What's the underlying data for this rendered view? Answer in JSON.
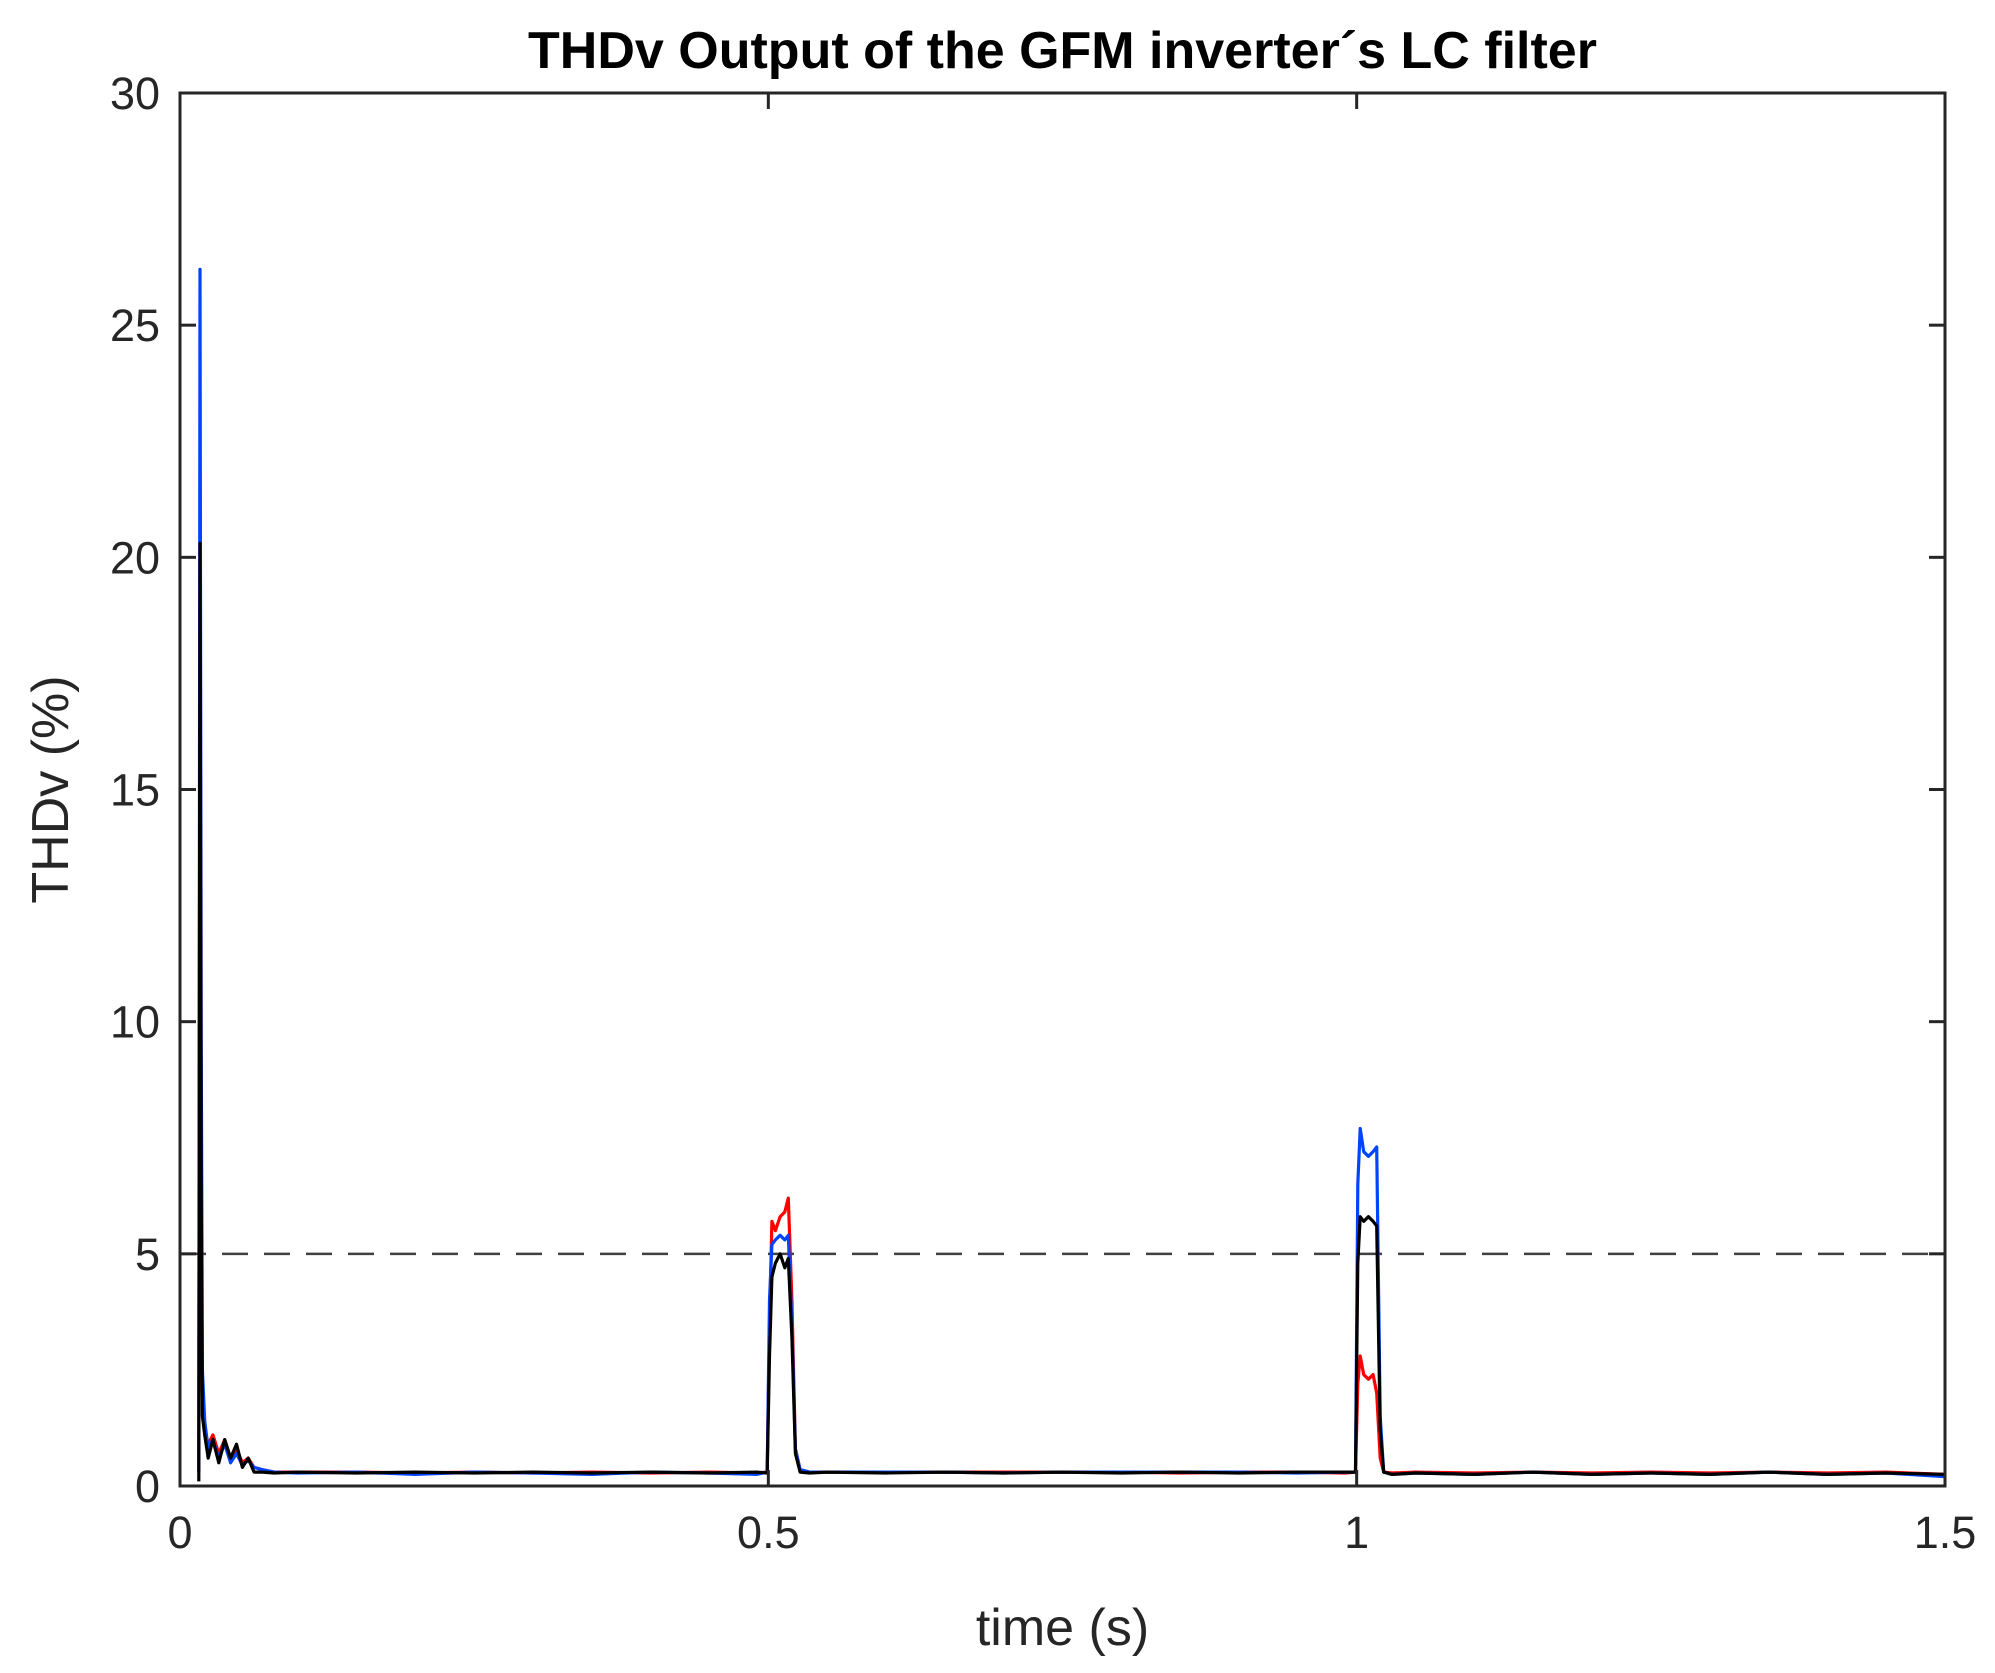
{
  "chart_data": {
    "type": "line",
    "title": "THDv Output of the GFM inverter´s LC filter",
    "xlabel": "time (s)",
    "ylabel": "THDv (%)",
    "xlim": [
      0,
      1.5
    ],
    "ylim": [
      0,
      30
    ],
    "xticks": [
      0,
      0.5,
      1,
      1.5
    ],
    "xtick_labels": [
      "0",
      "0.5",
      "1",
      "1.5"
    ],
    "yticks": [
      0,
      5,
      10,
      15,
      20,
      25,
      30
    ],
    "ytick_labels": [
      "0",
      "5",
      "10",
      "15",
      "20",
      "25",
      "30"
    ],
    "grid": false,
    "reference_lines": [
      {
        "y": 5,
        "style": "dashed",
        "color": "#404040"
      }
    ],
    "series": [
      {
        "color": "#ff0000",
        "x": [
          0.0,
          0.016,
          0.017,
          0.018,
          0.019,
          0.021,
          0.024,
          0.028,
          0.033,
          0.038,
          0.043,
          0.048,
          0.053,
          0.058,
          0.063,
          0.07,
          0.08,
          0.1,
          0.15,
          0.2,
          0.25,
          0.3,
          0.35,
          0.4,
          0.45,
          0.49,
          0.499,
          0.501,
          0.503,
          0.506,
          0.51,
          0.514,
          0.517,
          0.52,
          0.523,
          0.527,
          0.535,
          0.55,
          0.6,
          0.65,
          0.7,
          0.75,
          0.8,
          0.85,
          0.9,
          0.95,
          0.99,
          0.999,
          1.001,
          1.003,
          1.006,
          1.01,
          1.014,
          1.017,
          1.02,
          1.023,
          1.03,
          1.05,
          1.1,
          1.15,
          1.2,
          1.25,
          1.3,
          1.35,
          1.4,
          1.45,
          1.5
        ],
        "values": [
          null,
          0.3,
          19.5,
          5.0,
          2.0,
          1.2,
          0.9,
          1.1,
          0.7,
          1.0,
          0.6,
          0.8,
          0.5,
          0.6,
          0.4,
          0.35,
          0.3,
          0.3,
          0.3,
          0.28,
          0.3,
          0.28,
          0.3,
          0.28,
          0.3,
          0.28,
          0.3,
          3.5,
          5.7,
          5.5,
          5.8,
          5.9,
          6.2,
          4.0,
          0.8,
          0.35,
          0.3,
          0.3,
          0.3,
          0.3,
          0.3,
          0.3,
          0.3,
          0.28,
          0.3,
          0.3,
          0.28,
          0.3,
          2.2,
          2.8,
          2.4,
          2.3,
          2.4,
          2.0,
          0.6,
          0.3,
          0.28,
          0.3,
          0.28,
          0.3,
          0.28,
          0.3,
          0.28,
          0.3,
          0.28,
          0.3,
          0.25
        ]
      },
      {
        "color": "#0044ff",
        "x": [
          0.0,
          0.016,
          0.017,
          0.018,
          0.019,
          0.021,
          0.024,
          0.028,
          0.033,
          0.038,
          0.043,
          0.048,
          0.053,
          0.058,
          0.063,
          0.07,
          0.08,
          0.1,
          0.15,
          0.2,
          0.25,
          0.3,
          0.35,
          0.4,
          0.45,
          0.49,
          0.499,
          0.501,
          0.503,
          0.506,
          0.51,
          0.514,
          0.517,
          0.52,
          0.523,
          0.527,
          0.535,
          0.55,
          0.6,
          0.65,
          0.7,
          0.75,
          0.8,
          0.85,
          0.9,
          0.95,
          0.99,
          0.999,
          1.001,
          1.003,
          1.006,
          1.01,
          1.014,
          1.017,
          1.02,
          1.023,
          1.03,
          1.05,
          1.1,
          1.15,
          1.2,
          1.25,
          1.3,
          1.35,
          1.4,
          1.45,
          1.5
        ],
        "values": [
          null,
          0.3,
          26.2,
          9.8,
          2.5,
          1.4,
          0.8,
          1.0,
          0.6,
          0.9,
          0.5,
          0.7,
          0.45,
          0.55,
          0.4,
          0.35,
          0.3,
          0.28,
          0.3,
          0.25,
          0.3,
          0.28,
          0.25,
          0.3,
          0.28,
          0.25,
          0.3,
          4.0,
          5.2,
          5.3,
          5.4,
          5.3,
          5.4,
          3.5,
          0.8,
          0.35,
          0.3,
          0.3,
          0.3,
          0.3,
          0.28,
          0.3,
          0.3,
          0.3,
          0.3,
          0.28,
          0.3,
          0.3,
          6.5,
          7.7,
          7.2,
          7.1,
          7.2,
          7.3,
          1.5,
          0.3,
          0.25,
          0.28,
          0.25,
          0.3,
          0.25,
          0.28,
          0.25,
          0.3,
          0.25,
          0.28,
          0.2
        ]
      },
      {
        "color": "#000000",
        "x": [
          0.0,
          0.016,
          0.017,
          0.018,
          0.019,
          0.021,
          0.024,
          0.028,
          0.033,
          0.038,
          0.043,
          0.048,
          0.053,
          0.058,
          0.063,
          0.07,
          0.08,
          0.1,
          0.15,
          0.2,
          0.25,
          0.3,
          0.35,
          0.4,
          0.45,
          0.49,
          0.499,
          0.501,
          0.503,
          0.506,
          0.51,
          0.514,
          0.517,
          0.52,
          0.523,
          0.527,
          0.535,
          0.55,
          0.6,
          0.65,
          0.7,
          0.75,
          0.8,
          0.85,
          0.9,
          0.95,
          0.99,
          0.999,
          1.001,
          1.003,
          1.006,
          1.01,
          1.014,
          1.017,
          1.02,
          1.023,
          1.03,
          1.05,
          1.1,
          1.15,
          1.2,
          1.25,
          1.3,
          1.35,
          1.4,
          1.45,
          1.5
        ],
        "values": [
          null,
          0.1,
          20.3,
          6.5,
          1.5,
          1.1,
          0.6,
          1.0,
          0.5,
          1.0,
          0.6,
          0.9,
          0.4,
          0.6,
          0.3,
          0.3,
          0.28,
          0.3,
          0.28,
          0.3,
          0.28,
          0.3,
          0.28,
          0.3,
          0.28,
          0.3,
          0.28,
          2.8,
          4.5,
          4.8,
          5.0,
          4.7,
          4.9,
          3.2,
          0.7,
          0.3,
          0.28,
          0.3,
          0.28,
          0.3,
          0.28,
          0.3,
          0.28,
          0.3,
          0.28,
          0.3,
          0.3,
          0.3,
          4.8,
          5.8,
          5.7,
          5.8,
          5.7,
          5.6,
          1.2,
          0.3,
          0.25,
          0.28,
          0.25,
          0.3,
          0.25,
          0.28,
          0.25,
          0.3,
          0.25,
          0.28,
          0.25
        ]
      }
    ]
  }
}
